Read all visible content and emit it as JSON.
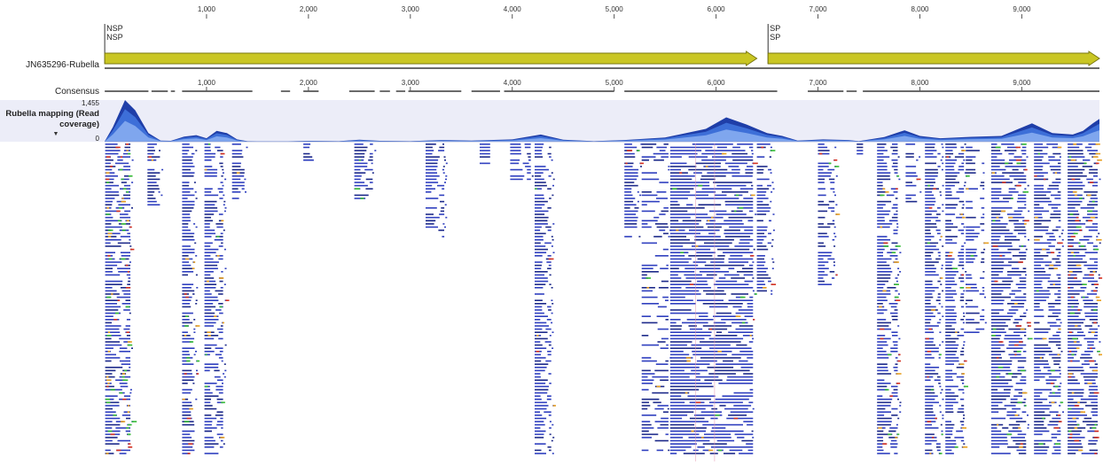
{
  "sequence_name": "JN635296-Rubella",
  "consensus_label": "Consensus",
  "coverage": {
    "title": "Rubella mapping (Read coverage)",
    "max_label": "1,455",
    "min_label": "0",
    "dropdown_icon": "triangle-down-icon"
  },
  "ruler": {
    "min": 0,
    "max": 9762,
    "ticks": [
      1000,
      2000,
      3000,
      4000,
      5000,
      6000,
      7000,
      8000,
      9000
    ],
    "tick_labels": [
      "1,000",
      "2,000",
      "3,000",
      "4,000",
      "5,000",
      "6,000",
      "7,000",
      "8,000",
      "9,000"
    ]
  },
  "annotations": [
    {
      "name": "NSP",
      "label_line1": "NSP",
      "label_line2": "NSP",
      "start": 1,
      "end": 6400
    },
    {
      "name": "SP",
      "label_line1": "SP",
      "label_line2": "SP",
      "start": 6510,
      "end": 9762
    }
  ],
  "consensus_segments": [
    [
      1,
      430
    ],
    [
      460,
      620
    ],
    [
      650,
      690
    ],
    [
      760,
      1450
    ],
    [
      1730,
      1820
    ],
    [
      1950,
      2100
    ],
    [
      2400,
      2650
    ],
    [
      2700,
      2800
    ],
    [
      2860,
      2950
    ],
    [
      2980,
      3500
    ],
    [
      3600,
      3880
    ],
    [
      3920,
      5000
    ],
    [
      5100,
      6600
    ],
    [
      6900,
      7250
    ],
    [
      7280,
      7380
    ],
    [
      7440,
      9762
    ]
  ],
  "coverage_profile": [
    [
      0,
      5
    ],
    [
      80,
      500
    ],
    [
      200,
      1455
    ],
    [
      300,
      1100
    ],
    [
      430,
      300
    ],
    [
      550,
      40
    ],
    [
      650,
      30
    ],
    [
      780,
      180
    ],
    [
      900,
      230
    ],
    [
      1000,
      120
    ],
    [
      1100,
      380
    ],
    [
      1200,
      300
    ],
    [
      1300,
      80
    ],
    [
      1400,
      20
    ],
    [
      1700,
      10
    ],
    [
      2000,
      30
    ],
    [
      2300,
      20
    ],
    [
      2500,
      70
    ],
    [
      2700,
      30
    ],
    [
      3000,
      20
    ],
    [
      3300,
      60
    ],
    [
      3600,
      40
    ],
    [
      4000,
      80
    ],
    [
      4280,
      250
    ],
    [
      4500,
      70
    ],
    [
      4800,
      20
    ],
    [
      5100,
      60
    ],
    [
      5500,
      150
    ],
    [
      5900,
      450
    ],
    [
      6100,
      850
    ],
    [
      6300,
      600
    ],
    [
      6500,
      300
    ],
    [
      6650,
      200
    ],
    [
      6800,
      40
    ],
    [
      7050,
      80
    ],
    [
      7300,
      60
    ],
    [
      7400,
      20
    ],
    [
      7650,
      160
    ],
    [
      7850,
      400
    ],
    [
      8000,
      200
    ],
    [
      8200,
      120
    ],
    [
      8500,
      170
    ],
    [
      8800,
      200
    ],
    [
      9100,
      640
    ],
    [
      9300,
      300
    ],
    [
      9500,
      250
    ],
    [
      9600,
      380
    ],
    [
      9700,
      650
    ],
    [
      9762,
      800
    ]
  ],
  "read_clusters": [
    {
      "start": 5,
      "end": 270,
      "rows": 98,
      "density": 0.9,
      "mismatch": 0.35
    },
    {
      "start": 420,
      "end": 560,
      "rows": 20,
      "density": 0.8,
      "mismatch": 0.08
    },
    {
      "start": 760,
      "end": 900,
      "rows": 98,
      "density": 0.85,
      "mismatch": 0.2
    },
    {
      "start": 980,
      "end": 1180,
      "rows": 98,
      "density": 0.85,
      "mismatch": 0.1
    },
    {
      "start": 1250,
      "end": 1390,
      "rows": 18,
      "density": 0.8,
      "mismatch": 0.1
    },
    {
      "start": 1950,
      "end": 2070,
      "rows": 6,
      "density": 0.8,
      "mismatch": 0.05
    },
    {
      "start": 2450,
      "end": 2650,
      "rows": 18,
      "density": 0.75,
      "mismatch": 0.25
    },
    {
      "start": 3150,
      "end": 3350,
      "rows": 30,
      "density": 0.8,
      "mismatch": 0.05
    },
    {
      "start": 3680,
      "end": 3800,
      "rows": 8,
      "density": 0.8,
      "mismatch": 0.05
    },
    {
      "start": 3980,
      "end": 4200,
      "rows": 12,
      "density": 0.8,
      "mismatch": 0.05
    },
    {
      "start": 4220,
      "end": 4400,
      "rows": 98,
      "density": 0.9,
      "mismatch": 0.04
    },
    {
      "start": 5100,
      "end": 5260,
      "rows": 30,
      "density": 0.8,
      "mismatch": 0.05
    },
    {
      "start": 5270,
      "end": 5550,
      "rows": 98,
      "density": 0.5,
      "mismatch": 0.04
    },
    {
      "start": 5550,
      "end": 6380,
      "rows": 98,
      "density": 0.95,
      "mismatch": 0.12
    },
    {
      "start": 6400,
      "end": 6560,
      "rows": 48,
      "density": 0.85,
      "mismatch": 0.05
    },
    {
      "start": 7000,
      "end": 7180,
      "rows": 45,
      "density": 0.8,
      "mismatch": 0.05
    },
    {
      "start": 7380,
      "end": 7460,
      "rows": 5,
      "density": 0.8,
      "mismatch": 0.05
    },
    {
      "start": 7580,
      "end": 7800,
      "rows": 98,
      "density": 0.9,
      "mismatch": 0.15
    },
    {
      "start": 7860,
      "end": 8000,
      "rows": 20,
      "density": 0.7,
      "mismatch": 0.1
    },
    {
      "start": 8050,
      "end": 8220,
      "rows": 98,
      "density": 0.9,
      "mismatch": 0.1
    },
    {
      "start": 8250,
      "end": 8450,
      "rows": 98,
      "density": 0.9,
      "mismatch": 0.12
    },
    {
      "start": 8450,
      "end": 8650,
      "rows": 60,
      "density": 0.6,
      "mismatch": 0.1
    },
    {
      "start": 8700,
      "end": 9060,
      "rows": 98,
      "density": 0.95,
      "mismatch": 0.2
    },
    {
      "start": 9120,
      "end": 9400,
      "rows": 98,
      "density": 0.9,
      "mismatch": 0.15
    },
    {
      "start": 9450,
      "end": 9762,
      "rows": 98,
      "density": 0.95,
      "mismatch": 0.45
    }
  ],
  "colors": {
    "read": "#2f3fbf",
    "read_dark": "#1d2a8a",
    "mismatch_a": "#33bb33",
    "mismatch_b": "#e8a020",
    "mismatch_c": "#d43020",
    "coverage_light": "#7fa6ee",
    "coverage_mid": "#3d6fd8",
    "coverage_dark": "#1f3ea8",
    "coverage_bg": "#ecedf8",
    "annotation_fill": "#c9c623",
    "annotation_edge": "#7a7810",
    "variant_line": "#e6a0b8"
  }
}
